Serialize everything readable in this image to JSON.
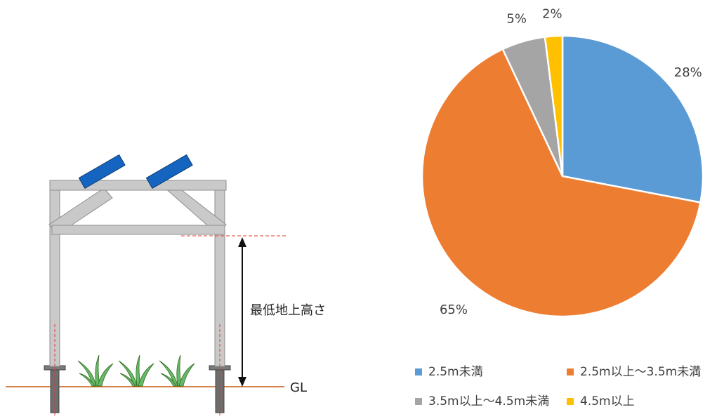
{
  "diagram": {
    "height_label": "最低地上高さ",
    "ground_label": "GL",
    "colors": {
      "frame": "#c9c9c9",
      "frame_stroke": "#8f8f8f",
      "panel": "#1565c0",
      "ground": "#c55a11",
      "dashed": "#e53935",
      "plant": "#4caf50"
    }
  },
  "chart_data": {
    "type": "pie",
    "title": "",
    "categories": [
      "2.5m未満",
      "2.5m以上～3.5m未満",
      "3.5m以上～4.5m未満",
      "4.5m以上"
    ],
    "values": [
      28,
      65,
      5,
      2
    ],
    "labels": [
      "28%",
      "65%",
      "5%",
      "2%"
    ],
    "colors": [
      "#5b9bd5",
      "#ed7d31",
      "#a5a5a5",
      "#ffc000"
    ],
    "start": "12 o'clock",
    "direction": "clockwise",
    "legend_position": "bottom"
  }
}
